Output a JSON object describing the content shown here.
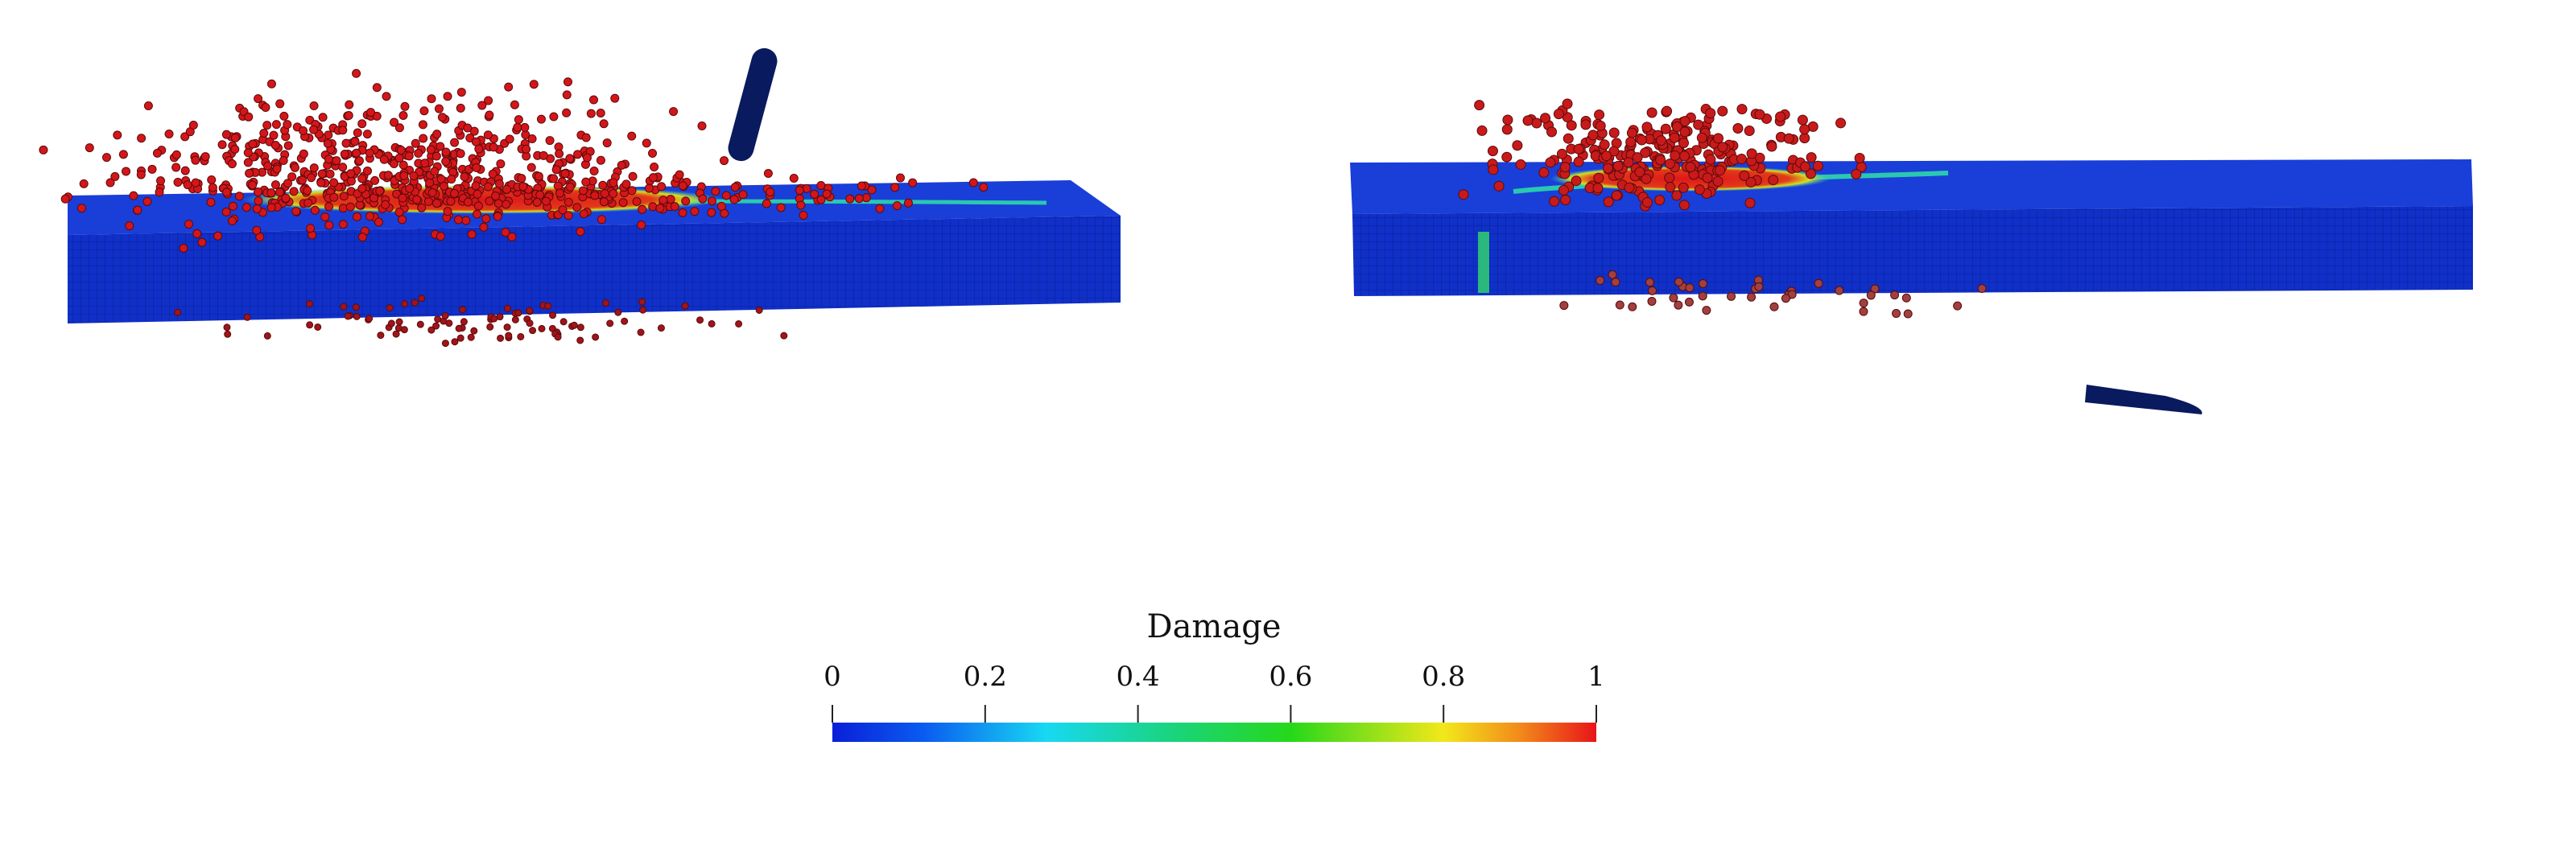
{
  "colorbar": {
    "title": "Damage",
    "range": [
      0,
      1
    ],
    "ticks": [
      0,
      0.2,
      0.4,
      0.6,
      0.8,
      1
    ]
  }
}
